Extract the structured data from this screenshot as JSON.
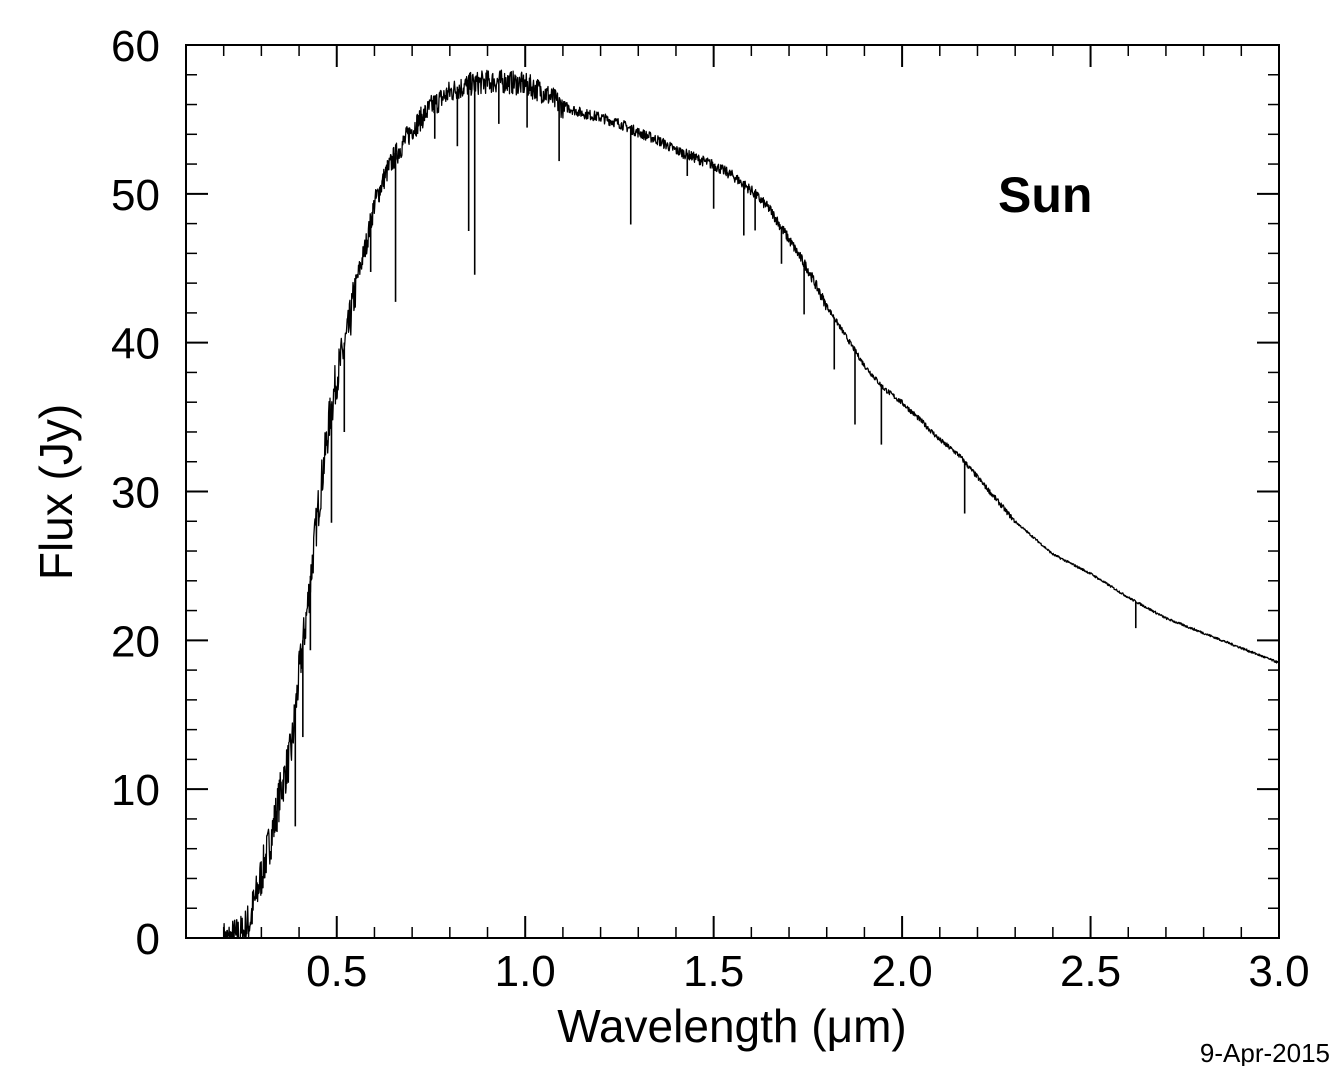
{
  "chart_data": {
    "type": "line",
    "title": "",
    "xlabel": "Wavelength (μm)",
    "ylabel": "Flux (Jy)",
    "xlim": [
      0.1,
      3.0
    ],
    "ylim": [
      0,
      60
    ],
    "x_ticks": [
      "0.5",
      "1.0",
      "1.5",
      "2.0",
      "2.5",
      "3.0"
    ],
    "x_tick_values": [
      0.5,
      1.0,
      1.5,
      2.0,
      2.5,
      3.0
    ],
    "y_ticks": [
      "0",
      "10",
      "20",
      "30",
      "40",
      "50",
      "60"
    ],
    "y_tick_values": [
      0,
      10,
      20,
      30,
      40,
      50,
      60
    ],
    "annotation": "Sun",
    "date_stamp": "9-Apr-2015",
    "grid": false,
    "line_color": "#000000",
    "series": [
      {
        "x": [
          0.2,
          0.22,
          0.25,
          0.27,
          0.3,
          0.33,
          0.35,
          0.38,
          0.4,
          0.42,
          0.45,
          0.48,
          0.5,
          0.53,
          0.55,
          0.58,
          0.6,
          0.63,
          0.65,
          0.7,
          0.75,
          0.8,
          0.85,
          0.9,
          0.95,
          1.0,
          1.05,
          1.1,
          1.15,
          1.2,
          1.25,
          1.3,
          1.35,
          1.4,
          1.45,
          1.5,
          1.55,
          1.6,
          1.65,
          1.7,
          1.75,
          1.8,
          1.85,
          1.9,
          1.95,
          2.0,
          2.05,
          2.1,
          2.15,
          2.2,
          2.3,
          2.4,
          2.5,
          2.6,
          2.7,
          2.8,
          2.9,
          3.0
        ],
        "y": [
          0.0,
          0.1,
          0.5,
          1.5,
          4.5,
          7.5,
          10.0,
          13.0,
          18.0,
          22.0,
          29.0,
          35.0,
          38.0,
          41.0,
          44.0,
          47.0,
          49.5,
          51.5,
          52.5,
          54.5,
          56.0,
          57.0,
          57.5,
          57.7,
          57.7,
          57.5,
          57.0,
          56.0,
          55.5,
          55.2,
          54.8,
          54.2,
          53.7,
          53.0,
          52.5,
          52.0,
          51.3,
          50.3,
          49.0,
          47.0,
          45.0,
          42.5,
          40.5,
          38.5,
          37.0,
          36.0,
          34.8,
          33.5,
          32.5,
          31.0,
          28.0,
          25.8,
          24.5,
          22.9,
          21.5,
          20.5,
          19.5,
          18.5
        ]
      }
    ],
    "absorption_lines": [
      {
        "x": 0.39,
        "depth": 8.0
      },
      {
        "x": 0.41,
        "depth": 6.5
      },
      {
        "x": 0.43,
        "depth": 5.0
      },
      {
        "x": 0.486,
        "depth": 8.0
      },
      {
        "x": 0.52,
        "depth": 6.0
      },
      {
        "x": 0.59,
        "depth": 3.5
      },
      {
        "x": 0.656,
        "depth": 10.0
      },
      {
        "x": 0.76,
        "depth": 2.5
      },
      {
        "x": 0.82,
        "depth": 4.0
      },
      {
        "x": 0.85,
        "depth": 10.0
      },
      {
        "x": 0.866,
        "depth": 13.0
      },
      {
        "x": 0.93,
        "depth": 3.0
      },
      {
        "x": 1.005,
        "depth": 3.0
      },
      {
        "x": 1.09,
        "depth": 4.0
      },
      {
        "x": 1.28,
        "depth": 6.5
      },
      {
        "x": 1.43,
        "depth": 1.5
      },
      {
        "x": 1.5,
        "depth": 3.0
      },
      {
        "x": 1.58,
        "depth": 3.5
      },
      {
        "x": 1.61,
        "depth": 2.5
      },
      {
        "x": 1.68,
        "depth": 2.5
      },
      {
        "x": 1.74,
        "depth": 3.5
      },
      {
        "x": 1.82,
        "depth": 3.5
      },
      {
        "x": 1.875,
        "depth": 5.0
      },
      {
        "x": 1.945,
        "depth": 4.0
      },
      {
        "x": 2.166,
        "depth": 3.5
      },
      {
        "x": 2.62,
        "depth": 1.8
      }
    ]
  }
}
